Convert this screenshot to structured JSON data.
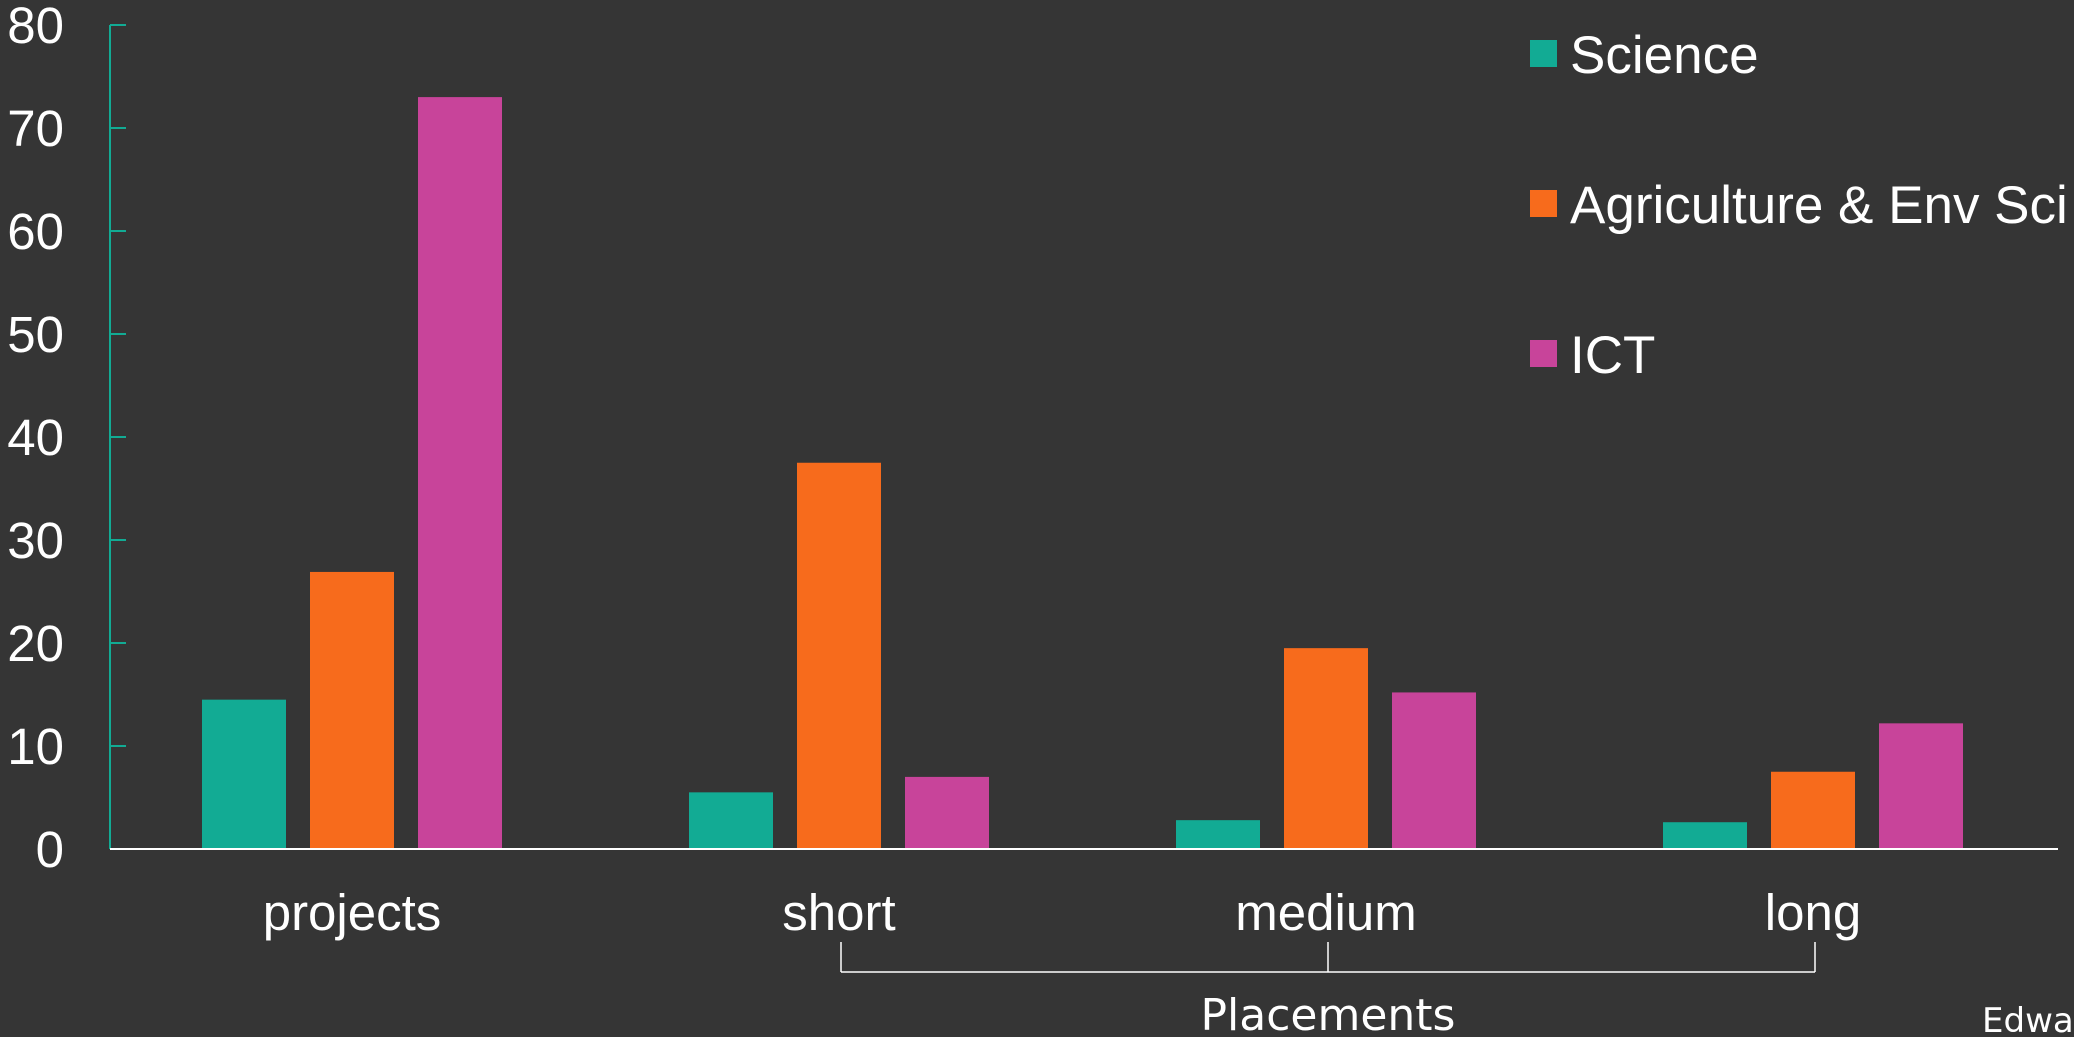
{
  "chart_data": {
    "type": "bar",
    "categories": [
      "projects",
      "short",
      "medium",
      "long"
    ],
    "series": [
      {
        "name": "Science",
        "values": [
          14.5,
          5.5,
          2.8,
          2.6
        ],
        "color": "#12ab94"
      },
      {
        "name": "Agriculture & Env Sci",
        "values": [
          26.9,
          37.5,
          19.5,
          7.5
        ],
        "color": "#f76b1c"
      },
      {
        "name": "ICT",
        "values": [
          73,
          7,
          15.2,
          12.2
        ],
        "color": "#c8449a"
      }
    ],
    "ylim": [
      0,
      80
    ],
    "yticks": [
      "0",
      "10",
      "20",
      "30",
      "40",
      "50",
      "60",
      "70",
      "80"
    ],
    "group_bracket": {
      "label": "Placements",
      "categories": [
        "short",
        "medium",
        "long"
      ]
    },
    "legend_position": "top-right",
    "grid": false,
    "axis_color": "#12ab94"
  },
  "corner_text": "Edwa"
}
